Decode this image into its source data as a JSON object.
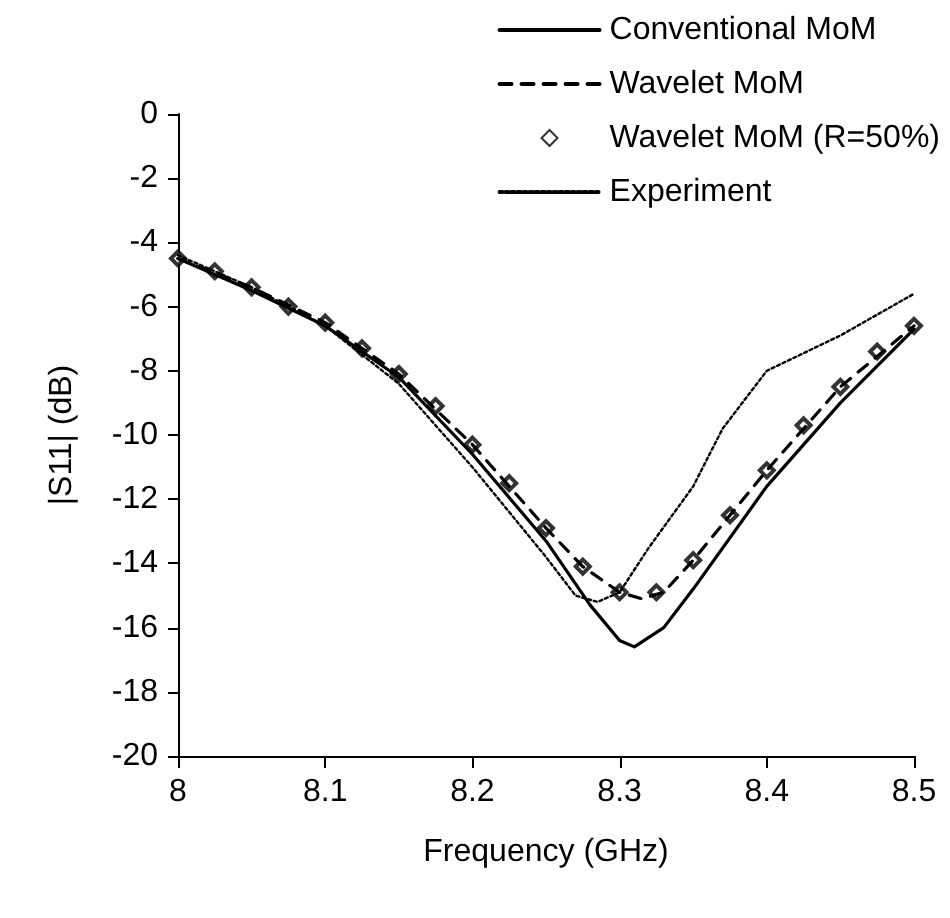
{
  "chart_data": {
    "type": "line",
    "xlabel": "Frequency (GHz)",
    "ylabel": "|S11| (dB)",
    "xlim": [
      8,
      8.5
    ],
    "xticks": [
      8,
      8.1,
      8.2,
      8.3,
      8.4,
      8.5
    ],
    "ylim": [
      -20,
      0
    ],
    "yticks": [
      -20,
      -18,
      -16,
      -14,
      -12,
      -10,
      -8,
      -6,
      -4,
      -2,
      0
    ],
    "grid": false,
    "legend": "top right",
    "series": [
      {
        "name": "Conventional MoM",
        "color": "#000000",
        "line_style": "solid",
        "marker": "none",
        "x": [
          8,
          8.05,
          8.1,
          8.15,
          8.2,
          8.25,
          8.28,
          8.3,
          8.31,
          8.33,
          8.35,
          8.4,
          8.45,
          8.5
        ],
        "values": [
          -4.5,
          -5.5,
          -6.6,
          -8.2,
          -10.6,
          -13.3,
          -15.3,
          -16.4,
          -16.6,
          -16.0,
          -14.8,
          -11.6,
          -9.0,
          -6.7
        ]
      },
      {
        "name": "Wavelet MoM",
        "color": "#000000",
        "line_style": "dashed",
        "marker": "none",
        "x": [
          8,
          8.05,
          8.1,
          8.15,
          8.2,
          8.25,
          8.275,
          8.3,
          8.315,
          8.33,
          8.35,
          8.4,
          8.45,
          8.5
        ],
        "values": [
          -4.5,
          -5.4,
          -6.5,
          -8.1,
          -10.3,
          -12.9,
          -14.1,
          -14.9,
          -15.1,
          -14.9,
          -13.9,
          -11.1,
          -8.5,
          -6.6
        ]
      },
      {
        "name": "Wavelet MoM (R=50%)",
        "type": "scatter",
        "color": "#000000",
        "marker": "diamond",
        "x": [
          8,
          8.025,
          8.05,
          8.075,
          8.1,
          8.125,
          8.15,
          8.175,
          8.2,
          8.225,
          8.25,
          8.275,
          8.3,
          8.325,
          8.35,
          8.375,
          8.4,
          8.425,
          8.45,
          8.475,
          8.5
        ],
        "values": [
          -4.5,
          -4.9,
          -5.4,
          -6.0,
          -6.5,
          -7.3,
          -8.1,
          -9.1,
          -10.3,
          -11.5,
          -12.9,
          -14.1,
          -14.9,
          -14.9,
          -13.9,
          -12.5,
          -11.1,
          -9.7,
          -8.5,
          -7.4,
          -6.6
        ]
      },
      {
        "name": "Experiment",
        "color": "#000000",
        "line_style": "dotted",
        "marker": "none",
        "x": [
          8,
          8.05,
          8.1,
          8.15,
          8.2,
          8.25,
          8.27,
          8.285,
          8.3,
          8.32,
          8.35,
          8.37,
          8.4,
          8.45,
          8.5
        ],
        "values": [
          -4.4,
          -5.4,
          -6.6,
          -8.4,
          -11.0,
          -13.8,
          -15.0,
          -15.2,
          -14.9,
          -13.5,
          -11.6,
          -9.8,
          -8.0,
          -6.9,
          -5.6
        ]
      }
    ]
  }
}
